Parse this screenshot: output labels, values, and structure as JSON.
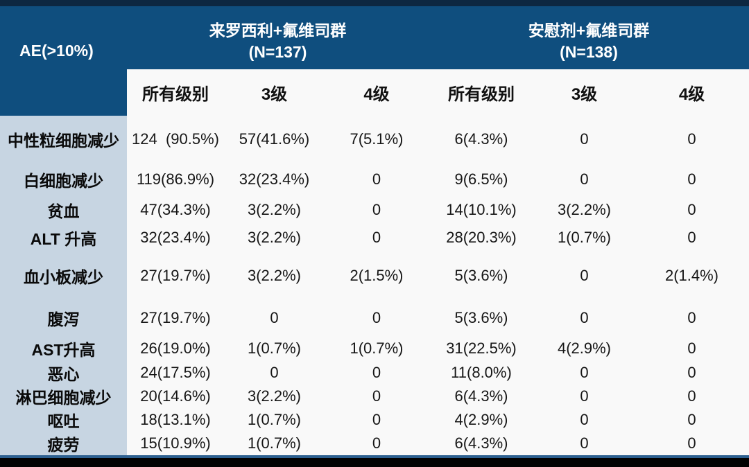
{
  "table": {
    "corner_label": "AE(>10%)",
    "groups": [
      {
        "title": "来罗西利+氟维司群",
        "n": "(N=137)"
      },
      {
        "title": "安慰剂+氟维司群",
        "n": "(N=138)"
      }
    ],
    "sub_headers": [
      "所有级别",
      "3级",
      "4级",
      "所有级别",
      "3级",
      "4级"
    ],
    "rows": [
      {
        "label": "中性粒细胞减少",
        "values": [
          "124  (90.5%)",
          "57(41.6%)",
          "7(5.1%)",
          "6(4.3%)",
          "0",
          "0"
        ]
      },
      {
        "label": "白细胞减少",
        "values": [
          "119(86.9%)",
          "32(23.4%)",
          "0",
          "9(6.5%)",
          "0",
          "0"
        ]
      },
      {
        "label": "贫血",
        "values": [
          "47(34.3%)",
          "3(2.2%)",
          "0",
          "14(10.1%)",
          "3(2.2%)",
          "0"
        ]
      },
      {
        "label": "ALT 升高",
        "values": [
          "32(23.4%)",
          "3(2.2%)",
          "0",
          "28(20.3%)",
          "1(0.7%)",
          "0"
        ]
      },
      {
        "label": "血小板减少",
        "values": [
          "27(19.7%)",
          "3(2.2%)",
          "2(1.5%)",
          "5(3.6%)",
          "0",
          "2(1.4%)"
        ]
      },
      {
        "label": "腹泻",
        "values": [
          "27(19.7%)",
          "0",
          "0",
          "5(3.6%)",
          "0",
          "0"
        ]
      },
      {
        "label": "AST升高",
        "values": [
          "26(19.0%)",
          "1(0.7%)",
          "1(0.7%)",
          "31(22.5%)",
          "4(2.9%)",
          "0"
        ]
      },
      {
        "label": "恶心",
        "values": [
          "24(17.5%)",
          "0",
          "0",
          "11(8.0%)",
          "0",
          "0"
        ]
      },
      {
        "label": "淋巴细胞减少",
        "values": [
          "20(14.6%)",
          "3(2.2%)",
          "0",
          "6(4.3%)",
          "0",
          "0"
        ]
      },
      {
        "label": "呕吐",
        "values": [
          "18(13.1%)",
          "1(0.7%)",
          "0",
          "4(2.9%)",
          "0",
          "0"
        ]
      },
      {
        "label": "疲劳",
        "values": [
          "15(10.9%)",
          "1(0.7%)",
          "0",
          "6(4.3%)",
          "0",
          "0"
        ]
      }
    ],
    "colors": {
      "header_bg": "#0f4e7e",
      "top_strip": "#0d2741",
      "label_column_bg": "#c7d5e2",
      "body_bg": "#f9f9f9",
      "header_text": "#ffffff",
      "body_text": "#161616",
      "bottom_line": "#2d6090",
      "bottom_bar": "#020202"
    }
  }
}
